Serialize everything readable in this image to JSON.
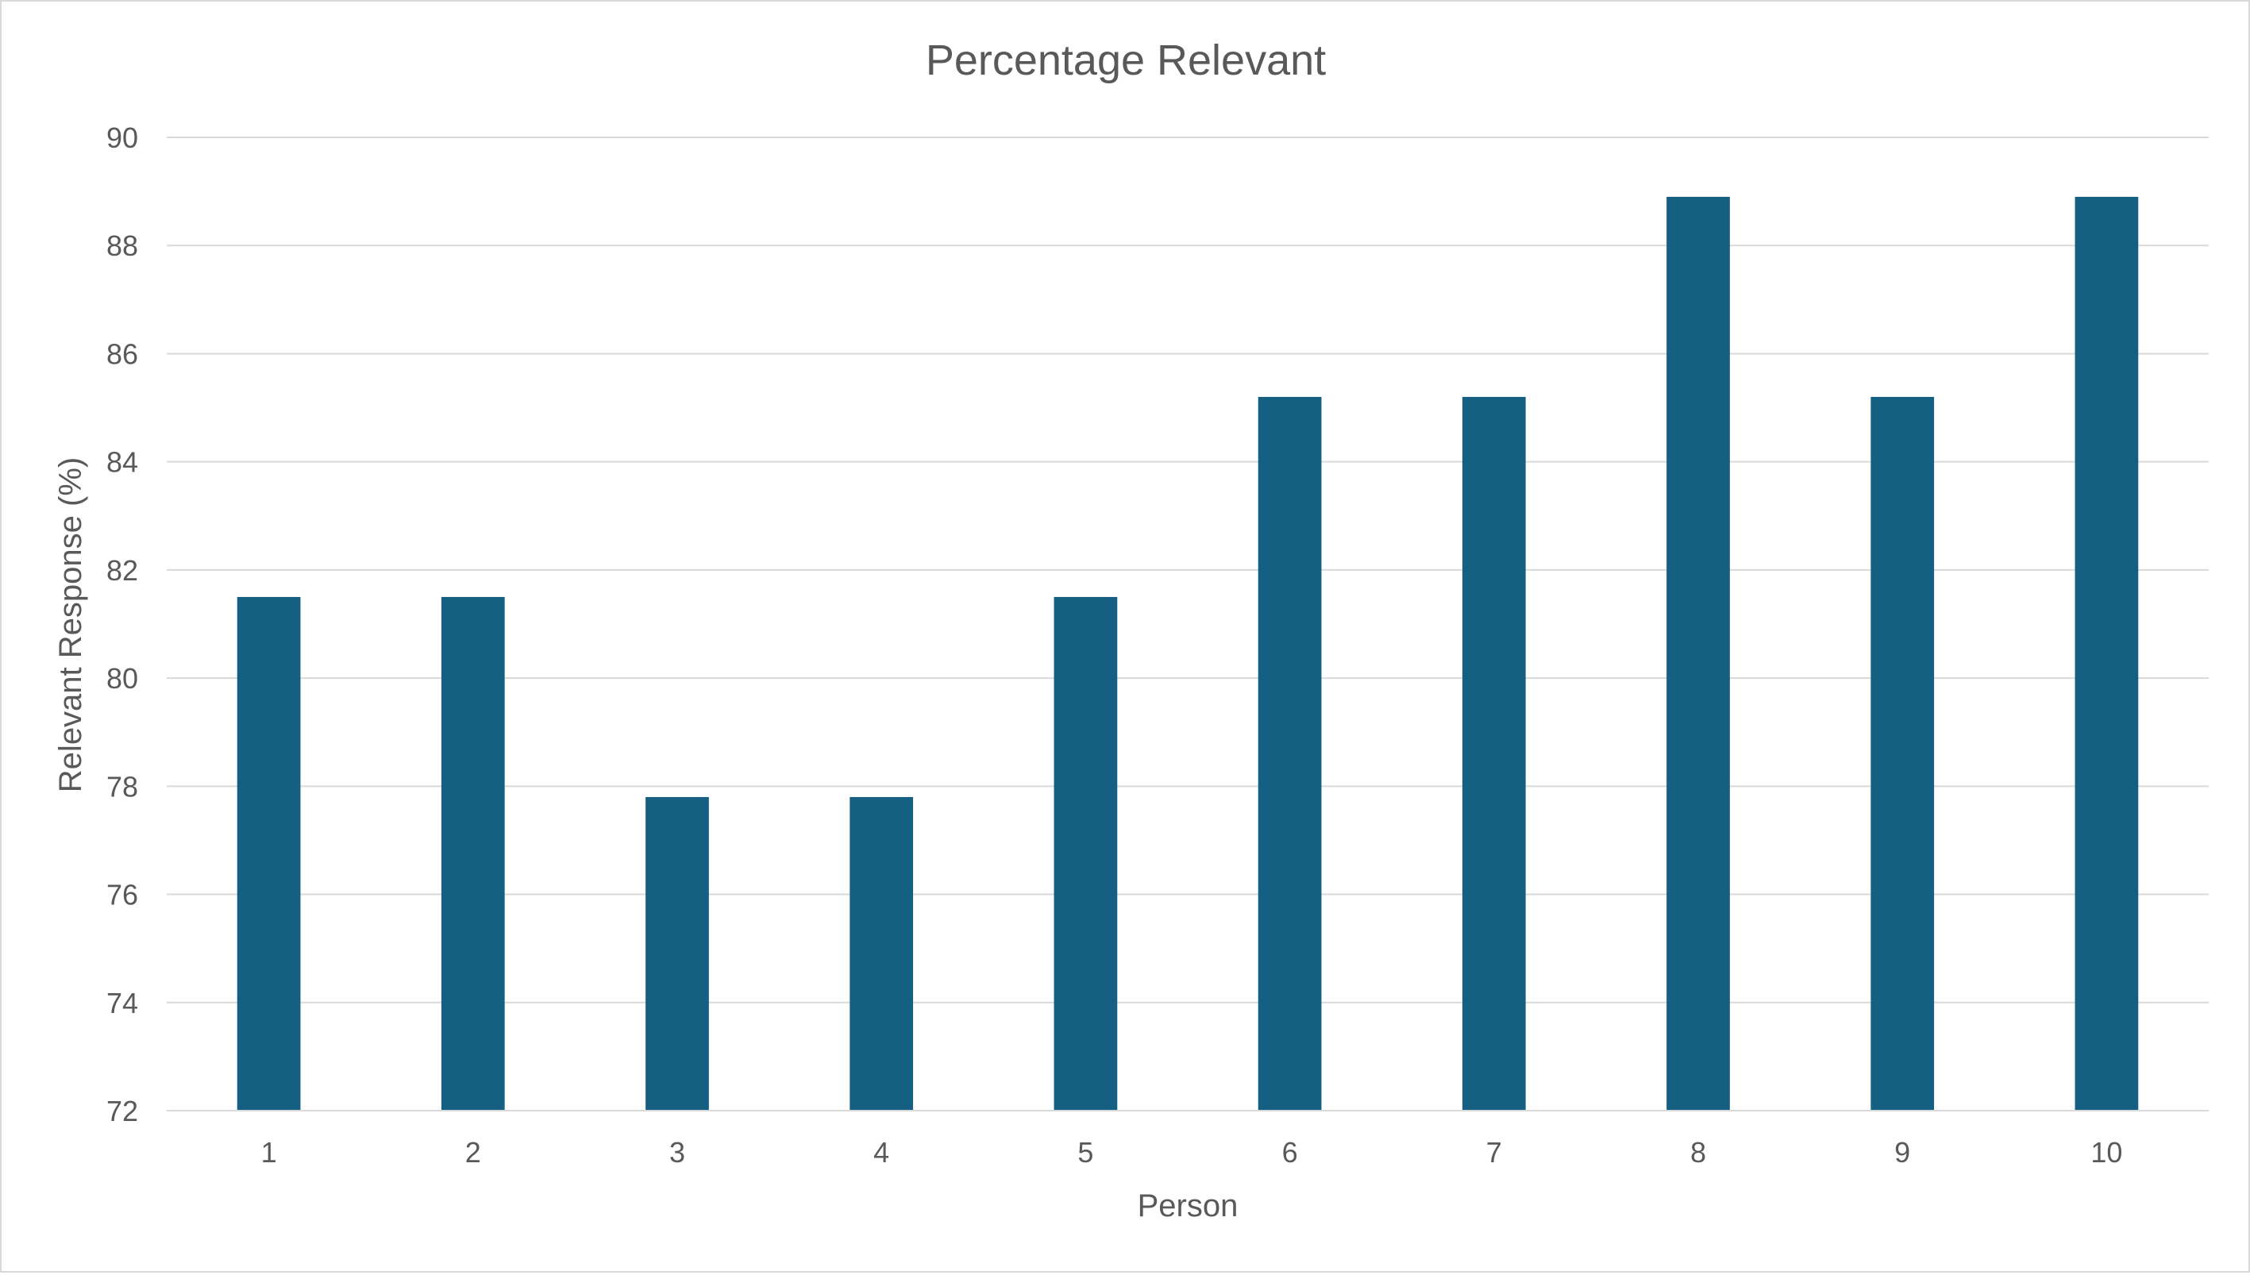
{
  "chart_data": {
    "type": "bar",
    "title": "Percentage Relevant",
    "xlabel": "Person",
    "ylabel": "Relevant Response (%)",
    "categories": [
      "1",
      "2",
      "3",
      "4",
      "5",
      "6",
      "7",
      "8",
      "9",
      "10"
    ],
    "values": [
      81.5,
      81.5,
      77.8,
      77.8,
      81.5,
      85.2,
      85.2,
      88.9,
      85.2,
      88.9
    ],
    "ylim": [
      72,
      90
    ],
    "yticks": [
      "72",
      "74",
      "76",
      "78",
      "80",
      "82",
      "84",
      "86",
      "88",
      "90"
    ],
    "grid": true,
    "legend": "none",
    "colors": {
      "bar": "#156082",
      "grid": "#d9d9d9",
      "text": "#595959",
      "axis": "#d9d9d9"
    }
  }
}
